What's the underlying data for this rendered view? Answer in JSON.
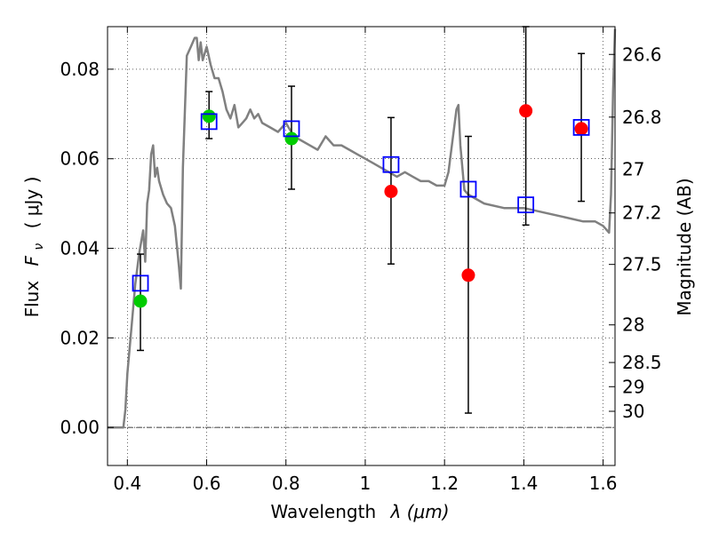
{
  "chart_data": {
    "type": "scatter",
    "xlabel_text": "Wavelength",
    "xlabel_math": "λ (μm)",
    "ylabel_text": "Flux",
    "ylabel_math": "F",
    "ylabel_sub": "ν",
    "ylabel_unit": "( μJy )",
    "ylabel_right": "Magnitude (AB)",
    "xlim": [
      0.35,
      1.63
    ],
    "ylim": [
      -0.0085,
      0.0895
    ],
    "x_ticks": [
      {
        "v": 0.4,
        "label": "0.4"
      },
      {
        "v": 0.6,
        "label": "0.6"
      },
      {
        "v": 0.8,
        "label": "0.8"
      },
      {
        "v": 1.0,
        "label": "1"
      },
      {
        "v": 1.2,
        "label": "1.2"
      },
      {
        "v": 1.4,
        "label": "1.4"
      },
      {
        "v": 1.6,
        "label": "1.6"
      }
    ],
    "y_ticks": [
      {
        "v": 0.0,
        "label": "0.00"
      },
      {
        "v": 0.02,
        "label": "0.02"
      },
      {
        "v": 0.04,
        "label": "0.04"
      },
      {
        "v": 0.06,
        "label": "0.06"
      },
      {
        "v": 0.08,
        "label": "0.08"
      }
    ],
    "right_ticks": [
      {
        "label": "26.6",
        "flux": 0.0833
      },
      {
        "label": "26.8",
        "flux": 0.0693
      },
      {
        "label": "27",
        "flux": 0.0577
      },
      {
        "label": "27.2",
        "flux": 0.0479
      },
      {
        "label": "27.5",
        "flux": 0.0364
      },
      {
        "label": "28",
        "flux": 0.0229
      },
      {
        "label": "28.5",
        "flux": 0.0145
      },
      {
        "label": "29",
        "flux": 0.0091
      },
      {
        "label": "30",
        "flux": 0.0036
      }
    ],
    "grid": true,
    "model_spectrum": {
      "color": "#808080",
      "x": [
        0.35,
        0.39,
        0.395,
        0.4,
        0.41,
        0.42,
        0.43,
        0.44,
        0.445,
        0.45,
        0.455,
        0.46,
        0.465,
        0.47,
        0.475,
        0.48,
        0.49,
        0.5,
        0.51,
        0.52,
        0.53,
        0.535,
        0.54,
        0.55,
        0.56,
        0.57,
        0.575,
        0.58,
        0.585,
        0.59,
        0.6,
        0.61,
        0.62,
        0.63,
        0.64,
        0.65,
        0.66,
        0.67,
        0.68,
        0.69,
        0.7,
        0.71,
        0.72,
        0.73,
        0.74,
        0.76,
        0.78,
        0.8,
        0.82,
        0.84,
        0.86,
        0.88,
        0.9,
        0.92,
        0.94,
        0.96,
        0.98,
        1.0,
        1.02,
        1.04,
        1.06,
        1.08,
        1.1,
        1.12,
        1.14,
        1.16,
        1.18,
        1.2,
        1.21,
        1.22,
        1.23,
        1.235,
        1.24,
        1.25,
        1.26,
        1.28,
        1.3,
        1.35,
        1.4,
        1.45,
        1.5,
        1.55,
        1.58,
        1.6,
        1.61,
        1.615,
        1.62,
        1.625,
        1.63
      ],
      "y": [
        0.0,
        0.0,
        0.004,
        0.012,
        0.022,
        0.032,
        0.039,
        0.044,
        0.037,
        0.05,
        0.053,
        0.061,
        0.063,
        0.056,
        0.058,
        0.055,
        0.052,
        0.05,
        0.049,
        0.045,
        0.036,
        0.031,
        0.058,
        0.083,
        0.085,
        0.087,
        0.087,
        0.082,
        0.086,
        0.082,
        0.085,
        0.081,
        0.078,
        0.078,
        0.075,
        0.071,
        0.069,
        0.072,
        0.067,
        0.068,
        0.069,
        0.071,
        0.069,
        0.07,
        0.068,
        0.067,
        0.066,
        0.068,
        0.065,
        0.064,
        0.063,
        0.062,
        0.065,
        0.063,
        0.063,
        0.062,
        0.061,
        0.06,
        0.059,
        0.058,
        0.057,
        0.056,
        0.057,
        0.056,
        0.055,
        0.055,
        0.054,
        0.054,
        0.057,
        0.064,
        0.071,
        0.072,
        0.063,
        0.053,
        0.052,
        0.051,
        0.05,
        0.049,
        0.049,
        0.048,
        0.047,
        0.046,
        0.046,
        0.045,
        0.044,
        0.0435,
        0.052,
        0.075,
        0.089
      ]
    },
    "series": [
      {
        "name": "",
        "marker": "open-square",
        "color": "#0000ff",
        "points": [
          {
            "x": 0.433,
            "y": 0.0322,
            "ylo": 0.0172,
            "yhi": 0.0387
          },
          {
            "x": 0.606,
            "y": 0.0683,
            "ylo": 0.0645,
            "yhi": 0.075
          },
          {
            "x": 0.814,
            "y": 0.0667,
            "ylo": 0.0532,
            "yhi": 0.0762
          },
          {
            "x": 1.065,
            "y": 0.0587,
            "ylo": 0.0365,
            "yhi": 0.0692
          },
          {
            "x": 1.26,
            "y": 0.0532,
            "ylo": 0.0032,
            "yhi": 0.065
          },
          {
            "x": 1.405,
            "y": 0.0497,
            "ylo": 0.0452,
            "yhi": 0.0895
          },
          {
            "x": 1.545,
            "y": 0.067,
            "ylo": 0.0505,
            "yhi": 0.0835
          }
        ]
      },
      {
        "name": "",
        "marker": "filled-circle",
        "color": "#00cc00",
        "points": [
          {
            "x": 0.433,
            "y": 0.0282
          },
          {
            "x": 0.606,
            "y": 0.0695
          },
          {
            "x": 0.814,
            "y": 0.0645
          }
        ]
      },
      {
        "name": "",
        "marker": "filled-circle",
        "color": "#ff0000",
        "points": [
          {
            "x": 1.065,
            "y": 0.0527
          },
          {
            "x": 1.26,
            "y": 0.034
          },
          {
            "x": 1.405,
            "y": 0.0707
          },
          {
            "x": 1.545,
            "y": 0.0667
          }
        ]
      }
    ]
  }
}
